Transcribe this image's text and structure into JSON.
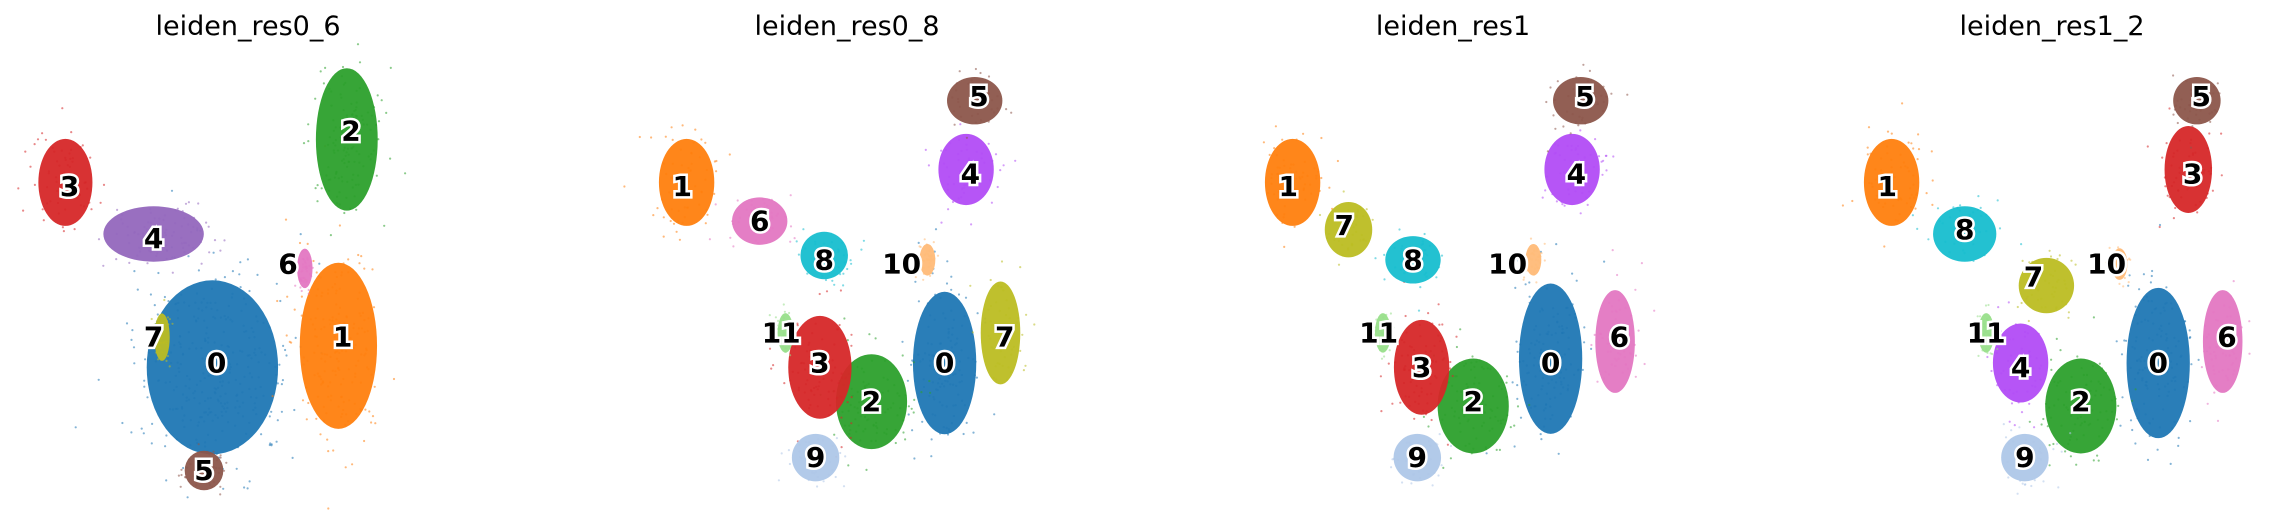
{
  "chart_data": [
    {
      "type": "scatter",
      "title": "leiden_res0_6",
      "xlabel": "",
      "ylabel": "",
      "grid": false,
      "legend": "on data",
      "clusters": [
        {
          "label": "0",
          "color": "#1f77b4",
          "cx": 0.42,
          "cy": 0.71,
          "rx": 0.17,
          "ry": 0.22,
          "label_x": 0.43,
          "label_y": 0.7
        },
        {
          "label": "1",
          "color": "#ff7f0e",
          "cx": 0.72,
          "cy": 0.66,
          "rx": 0.1,
          "ry": 0.21,
          "label_x": 0.73,
          "label_y": 0.64
        },
        {
          "label": "2",
          "color": "#2ca02c",
          "cx": 0.74,
          "cy": 0.18,
          "rx": 0.08,
          "ry": 0.18,
          "label_x": 0.75,
          "label_y": 0.16
        },
        {
          "label": "3",
          "color": "#d62728",
          "cx": 0.07,
          "cy": 0.28,
          "rx": 0.07,
          "ry": 0.11,
          "label_x": 0.08,
          "label_y": 0.29
        },
        {
          "label": "4",
          "color": "#9467bd",
          "cx": 0.28,
          "cy": 0.4,
          "rx": 0.13,
          "ry": 0.07,
          "label_x": 0.28,
          "label_y": 0.41
        },
        {
          "label": "5",
          "color": "#8c564b",
          "cx": 0.4,
          "cy": 0.95,
          "rx": 0.05,
          "ry": 0.05,
          "label_x": 0.4,
          "label_y": 0.95
        },
        {
          "label": "6",
          "color": "#e377c2",
          "cx": 0.64,
          "cy": 0.48,
          "rx": 0.02,
          "ry": 0.05,
          "label_x": 0.6,
          "label_y": 0.47
        },
        {
          "label": "7",
          "color": "#bcbd22",
          "cx": 0.3,
          "cy": 0.64,
          "rx": 0.02,
          "ry": 0.06,
          "label_x": 0.28,
          "label_y": 0.64
        }
      ]
    },
    {
      "type": "scatter",
      "title": "leiden_res0_8",
      "xlabel": "",
      "ylabel": "",
      "grid": false,
      "legend": "on data",
      "clusters": [
        {
          "label": "0",
          "color": "#1f77b4",
          "cx": 0.72,
          "cy": 0.7,
          "rx": 0.08,
          "ry": 0.18,
          "label_x": 0.72,
          "label_y": 0.7
        },
        {
          "label": "1",
          "color": "#ff7f0e",
          "cx": 0.12,
          "cy": 0.28,
          "rx": 0.07,
          "ry": 0.11,
          "label_x": 0.11,
          "label_y": 0.29
        },
        {
          "label": "2",
          "color": "#2ca02c",
          "cx": 0.55,
          "cy": 0.79,
          "rx": 0.09,
          "ry": 0.12,
          "label_x": 0.55,
          "label_y": 0.79
        },
        {
          "label": "3",
          "color": "#d62728",
          "cx": 0.43,
          "cy": 0.71,
          "rx": 0.08,
          "ry": 0.13,
          "label_x": 0.43,
          "label_y": 0.7
        },
        {
          "label": "4",
          "color": "#b24cf5",
          "cx": 0.77,
          "cy": 0.25,
          "rx": 0.07,
          "ry": 0.09,
          "label_x": 0.78,
          "label_y": 0.26
        },
        {
          "label": "5",
          "color": "#8c564b",
          "cx": 0.79,
          "cy": 0.09,
          "rx": 0.07,
          "ry": 0.06,
          "label_x": 0.8,
          "label_y": 0.08
        },
        {
          "label": "6",
          "color": "#e377c2",
          "cx": 0.29,
          "cy": 0.37,
          "rx": 0.07,
          "ry": 0.06,
          "label_x": 0.29,
          "label_y": 0.37
        },
        {
          "label": "7",
          "color": "#bcbd22",
          "cx": 0.85,
          "cy": 0.63,
          "rx": 0.05,
          "ry": 0.13,
          "label_x": 0.86,
          "label_y": 0.64
        },
        {
          "label": "8",
          "color": "#17becf",
          "cx": 0.44,
          "cy": 0.45,
          "rx": 0.06,
          "ry": 0.06,
          "label_x": 0.44,
          "label_y": 0.46
        },
        {
          "label": "9",
          "color": "#aec7e8",
          "cx": 0.42,
          "cy": 0.92,
          "rx": 0.06,
          "ry": 0.06,
          "label_x": 0.42,
          "label_y": 0.92
        },
        {
          "label": "10",
          "color": "#ffbb78",
          "cx": 0.68,
          "cy": 0.46,
          "rx": 0.02,
          "ry": 0.04,
          "label_x": 0.62,
          "label_y": 0.47
        },
        {
          "label": "11",
          "color": "#98df8a",
          "cx": 0.35,
          "cy": 0.63,
          "rx": 0.02,
          "ry": 0.05,
          "label_x": 0.34,
          "label_y": 0.63
        }
      ]
    },
    {
      "type": "scatter",
      "title": "leiden_res1",
      "xlabel": "",
      "ylabel": "",
      "grid": false,
      "legend": "on data",
      "clusters": [
        {
          "label": "0",
          "color": "#1f77b4",
          "cx": 0.72,
          "cy": 0.69,
          "rx": 0.08,
          "ry": 0.19,
          "label_x": 0.72,
          "label_y": 0.7
        },
        {
          "label": "1",
          "color": "#ff7f0e",
          "cx": 0.12,
          "cy": 0.28,
          "rx": 0.07,
          "ry": 0.11,
          "label_x": 0.11,
          "label_y": 0.29
        },
        {
          "label": "2",
          "color": "#2ca02c",
          "cx": 0.54,
          "cy": 0.8,
          "rx": 0.09,
          "ry": 0.12,
          "label_x": 0.54,
          "label_y": 0.79
        },
        {
          "label": "3",
          "color": "#d62728",
          "cx": 0.42,
          "cy": 0.71,
          "rx": 0.07,
          "ry": 0.12,
          "label_x": 0.42,
          "label_y": 0.71
        },
        {
          "label": "4",
          "color": "#b24cf5",
          "cx": 0.77,
          "cy": 0.25,
          "rx": 0.07,
          "ry": 0.09,
          "label_x": 0.78,
          "label_y": 0.26
        },
        {
          "label": "5",
          "color": "#8c564b",
          "cx": 0.79,
          "cy": 0.09,
          "rx": 0.07,
          "ry": 0.06,
          "label_x": 0.8,
          "label_y": 0.08
        },
        {
          "label": "6",
          "color": "#e377c2",
          "cx": 0.87,
          "cy": 0.65,
          "rx": 0.05,
          "ry": 0.13,
          "label_x": 0.88,
          "label_y": 0.64
        },
        {
          "label": "7",
          "color": "#bcbd22",
          "cx": 0.25,
          "cy": 0.39,
          "rx": 0.06,
          "ry": 0.07,
          "label_x": 0.24,
          "label_y": 0.38
        },
        {
          "label": "8",
          "color": "#17becf",
          "cx": 0.4,
          "cy": 0.46,
          "rx": 0.07,
          "ry": 0.06,
          "label_x": 0.4,
          "label_y": 0.46
        },
        {
          "label": "9",
          "color": "#aec7e8",
          "cx": 0.41,
          "cy": 0.92,
          "rx": 0.06,
          "ry": 0.06,
          "label_x": 0.41,
          "label_y": 0.92
        },
        {
          "label": "10",
          "color": "#ffbb78",
          "cx": 0.68,
          "cy": 0.46,
          "rx": 0.02,
          "ry": 0.04,
          "label_x": 0.62,
          "label_y": 0.47
        },
        {
          "label": "11",
          "color": "#98df8a",
          "cx": 0.33,
          "cy": 0.63,
          "rx": 0.02,
          "ry": 0.05,
          "label_x": 0.32,
          "label_y": 0.63
        }
      ]
    },
    {
      "type": "scatter",
      "title": "leiden_res1_2",
      "xlabel": "",
      "ylabel": "",
      "grid": false,
      "legend": "on data",
      "clusters": [
        {
          "label": "0",
          "color": "#1f77b4",
          "cx": 0.74,
          "cy": 0.7,
          "rx": 0.08,
          "ry": 0.19,
          "label_x": 0.74,
          "label_y": 0.7
        },
        {
          "label": "1",
          "color": "#ff7f0e",
          "cx": 0.12,
          "cy": 0.28,
          "rx": 0.07,
          "ry": 0.11,
          "label_x": 0.11,
          "label_y": 0.29
        },
        {
          "label": "2",
          "color": "#2ca02c",
          "cx": 0.56,
          "cy": 0.8,
          "rx": 0.09,
          "ry": 0.12,
          "label_x": 0.56,
          "label_y": 0.79
        },
        {
          "label": "3",
          "color": "#d62728",
          "cx": 0.81,
          "cy": 0.25,
          "rx": 0.06,
          "ry": 0.11,
          "label_x": 0.82,
          "label_y": 0.26
        },
        {
          "label": "4",
          "color": "#b24cf5",
          "cx": 0.42,
          "cy": 0.7,
          "rx": 0.07,
          "ry": 0.1,
          "label_x": 0.42,
          "label_y": 0.71
        },
        {
          "label": "5",
          "color": "#8c564b",
          "cx": 0.83,
          "cy": 0.09,
          "rx": 0.06,
          "ry": 0.06,
          "label_x": 0.84,
          "label_y": 0.08
        },
        {
          "label": "6",
          "color": "#e377c2",
          "cx": 0.89,
          "cy": 0.65,
          "rx": 0.05,
          "ry": 0.13,
          "label_x": 0.9,
          "label_y": 0.64
        },
        {
          "label": "7",
          "color": "#bcbd22",
          "cx": 0.48,
          "cy": 0.52,
          "rx": 0.07,
          "ry": 0.07,
          "label_x": 0.45,
          "label_y": 0.5
        },
        {
          "label": "8",
          "color": "#17becf",
          "cx": 0.29,
          "cy": 0.4,
          "rx": 0.08,
          "ry": 0.07,
          "label_x": 0.29,
          "label_y": 0.39
        },
        {
          "label": "9",
          "color": "#aec7e8",
          "cx": 0.43,
          "cy": 0.92,
          "rx": 0.06,
          "ry": 0.06,
          "label_x": 0.43,
          "label_y": 0.92
        },
        {
          "label": "10",
          "color": "#ffbb78",
          "cx": 0.65,
          "cy": 0.47,
          "rx": 0.02,
          "ry": 0.04,
          "label_x": 0.62,
          "label_y": 0.47
        },
        {
          "label": "11",
          "color": "#98df8a",
          "cx": 0.34,
          "cy": 0.63,
          "rx": 0.02,
          "ry": 0.05,
          "label_x": 0.34,
          "label_y": 0.63
        }
      ]
    }
  ]
}
